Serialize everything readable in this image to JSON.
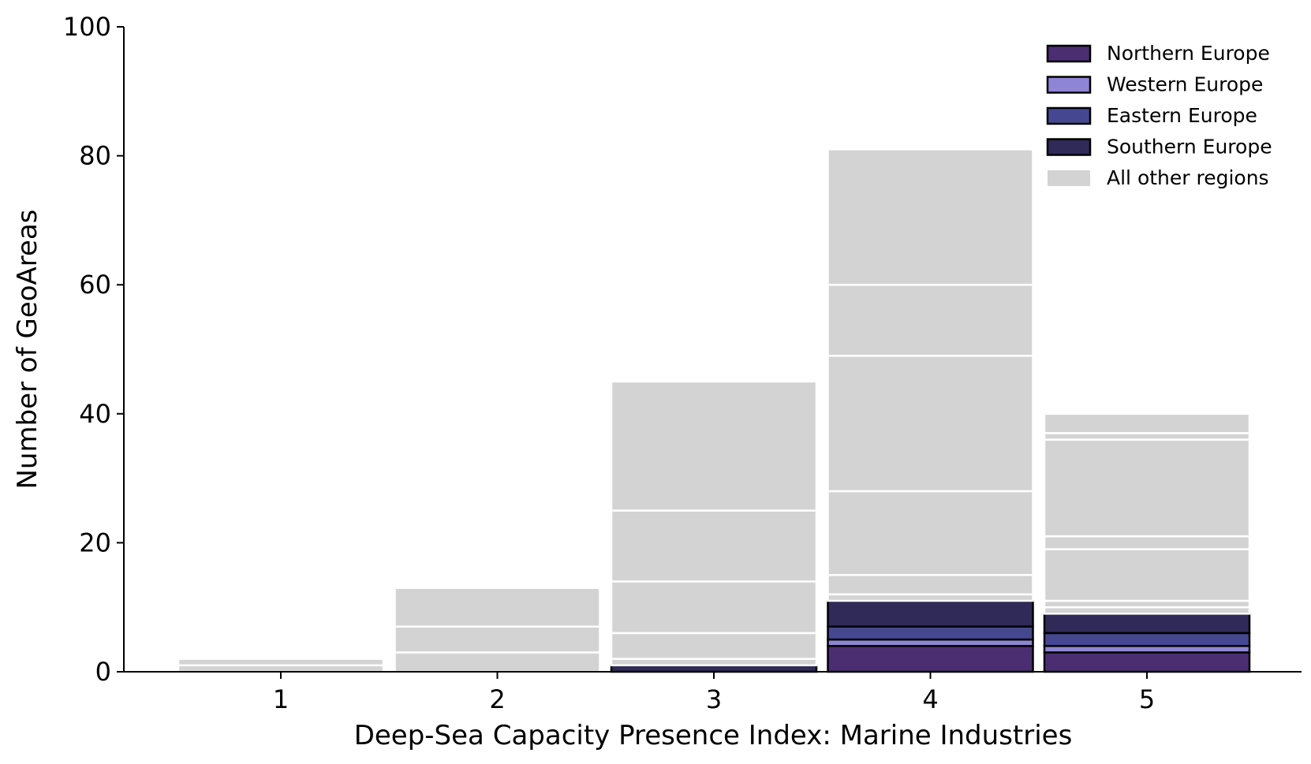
{
  "chart_data": {
    "type": "bar",
    "stacked": true,
    "categories": [
      "1",
      "2",
      "3",
      "4",
      "5"
    ],
    "xlabel": "Deep-Sea Capacity Presence Index: Marine Industries",
    "ylabel": "Number of GeoAreas",
    "ylim": [
      0,
      100
    ],
    "yticks": [
      "0",
      "20",
      "40",
      "60",
      "80",
      "100"
    ],
    "grid": false,
    "legend_position": "top-right",
    "series": [
      {
        "name": "Northern Europe",
        "color": "#4b2e72",
        "edge": "#000000",
        "values": [
          0,
          0,
          0,
          4,
          3
        ]
      },
      {
        "name": "Western Europe",
        "color": "#8f85d6",
        "edge": "#000000",
        "values": [
          0,
          0,
          0,
          1,
          1
        ]
      },
      {
        "name": "Eastern Europe",
        "color": "#454891",
        "edge": "#000000",
        "values": [
          0,
          0,
          0,
          2,
          2
        ]
      },
      {
        "name": "Southern Europe",
        "color": "#2f2a57",
        "edge": "#000000",
        "values": [
          0,
          0,
          1,
          4,
          3
        ]
      },
      {
        "name": "All other regions",
        "color": "#d3d3d3",
        "edge": "#ffffff",
        "segments": [
          [
            1,
            1
          ],
          [
            3,
            4,
            6
          ],
          [
            1,
            4,
            8,
            11,
            20
          ],
          [
            1,
            3,
            13,
            21,
            11,
            21
          ],
          [
            1,
            1,
            8,
            2,
            15,
            1,
            3
          ]
        ]
      }
    ]
  }
}
